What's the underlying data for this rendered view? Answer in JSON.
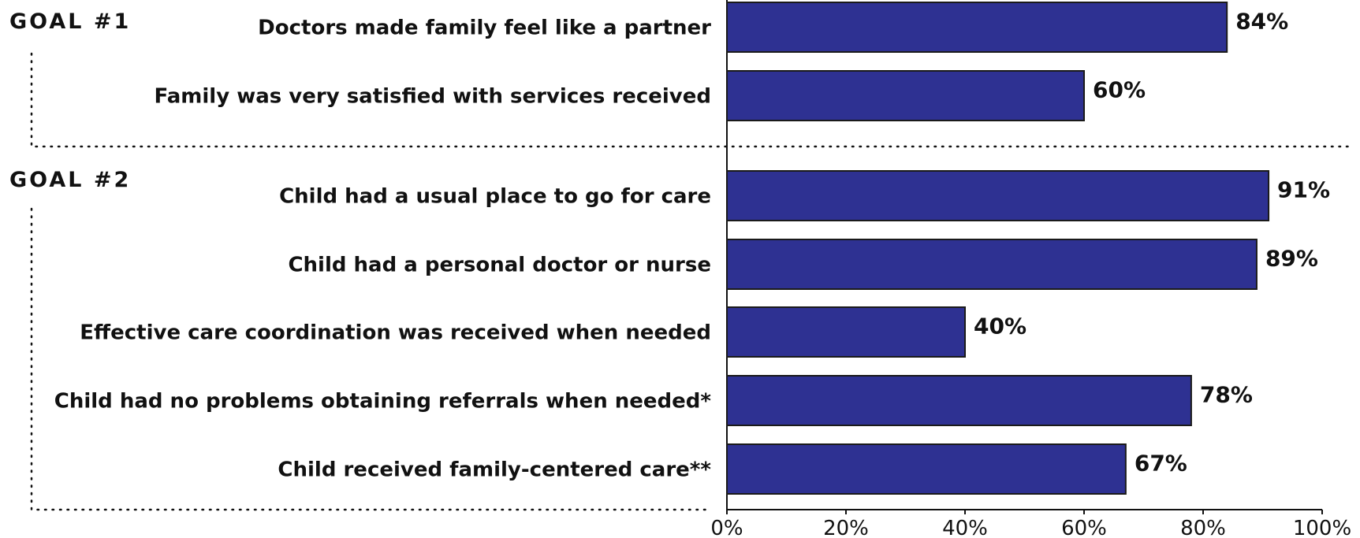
{
  "chart_data": {
    "type": "bar",
    "orientation": "horizontal",
    "bar_color": "#2e3192",
    "groups": [
      {
        "label": "GOAL #1",
        "items": [
          {
            "category": "Doctors made family feel like a partner",
            "value": 84,
            "label": "84%"
          },
          {
            "category": "Family was very satisfied with services received",
            "value": 60,
            "label": "60%"
          }
        ]
      },
      {
        "label": "GOAL #2",
        "items": [
          {
            "category": "Child had a usual place to go for care",
            "value": 91,
            "label": "91%"
          },
          {
            "category": "Child had a personal doctor or nurse",
            "value": 89,
            "label": "89%"
          },
          {
            "category": "Effective care coordination was received when needed",
            "value": 40,
            "label": "40%"
          },
          {
            "category": "Child had no problems obtaining referrals when needed*",
            "value": 78,
            "label": "78%"
          },
          {
            "category": "Child received family-centered care**",
            "value": 67,
            "label": "67%"
          }
        ]
      }
    ],
    "xlim": [
      0,
      100
    ],
    "xticks": [
      {
        "value": 0,
        "label": "0%"
      },
      {
        "value": 20,
        "label": "20%"
      },
      {
        "value": 40,
        "label": "40%"
      },
      {
        "value": 60,
        "label": "60%"
      },
      {
        "value": 80,
        "label": "80%"
      },
      {
        "value": 100,
        "label": "100%"
      }
    ],
    "grid": false,
    "legend": "none"
  }
}
